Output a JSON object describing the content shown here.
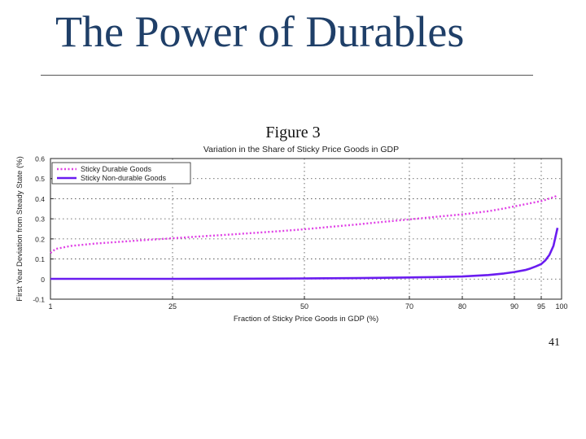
{
  "slide": {
    "title": "The Power of Durables",
    "page_number": "41"
  },
  "colors": {
    "title": "#1f3f68",
    "durable": "#e041e6",
    "nondurable": "#6a1cf0",
    "grid": "#444444"
  },
  "chart_data": {
    "type": "line",
    "figure_label": "Figure 3",
    "title": "Variation in the Share of Sticky Price Goods in GDP",
    "xlabel": "Fraction of Sticky Price Goods in GDP (%)",
    "ylabel": "First Year Deviation from Steady State (%)",
    "xticks": [
      1,
      25,
      50,
      70,
      80,
      90,
      95,
      100
    ],
    "yticks": [
      -0.1,
      0,
      0.1,
      0.2,
      0.3,
      0.4,
      0.5,
      0.6
    ],
    "ylim": [
      -0.1,
      0.6
    ],
    "grid": true,
    "legend": "top-left",
    "series": [
      {
        "name": "Sticky Durable Goods",
        "style": "dotted",
        "x": [
          1,
          2,
          5,
          10,
          15,
          20,
          25,
          30,
          35,
          40,
          45,
          50,
          55,
          60,
          65,
          70,
          75,
          80,
          85,
          88,
          90,
          92,
          94,
          95,
          96,
          97,
          98,
          99
        ],
        "y": [
          0.13,
          0.15,
          0.165,
          0.177,
          0.186,
          0.195,
          0.203,
          0.212,
          0.22,
          0.229,
          0.238,
          0.248,
          0.26,
          0.272,
          0.285,
          0.297,
          0.31,
          0.322,
          0.338,
          0.351,
          0.362,
          0.372,
          0.383,
          0.388,
          0.394,
          0.401,
          0.408,
          0.415
        ]
      },
      {
        "name": "Sticky Non-durable Goods",
        "style": "solid",
        "x": [
          1,
          10,
          25,
          40,
          50,
          60,
          70,
          75,
          80,
          85,
          88,
          90,
          92,
          93,
          94,
          95,
          96,
          97,
          98,
          99
        ],
        "y": [
          0.001,
          0.001,
          0.001,
          0.002,
          0.003,
          0.005,
          0.008,
          0.01,
          0.013,
          0.02,
          0.028,
          0.035,
          0.045,
          0.053,
          0.063,
          0.075,
          0.093,
          0.12,
          0.165,
          0.255
        ]
      }
    ]
  }
}
